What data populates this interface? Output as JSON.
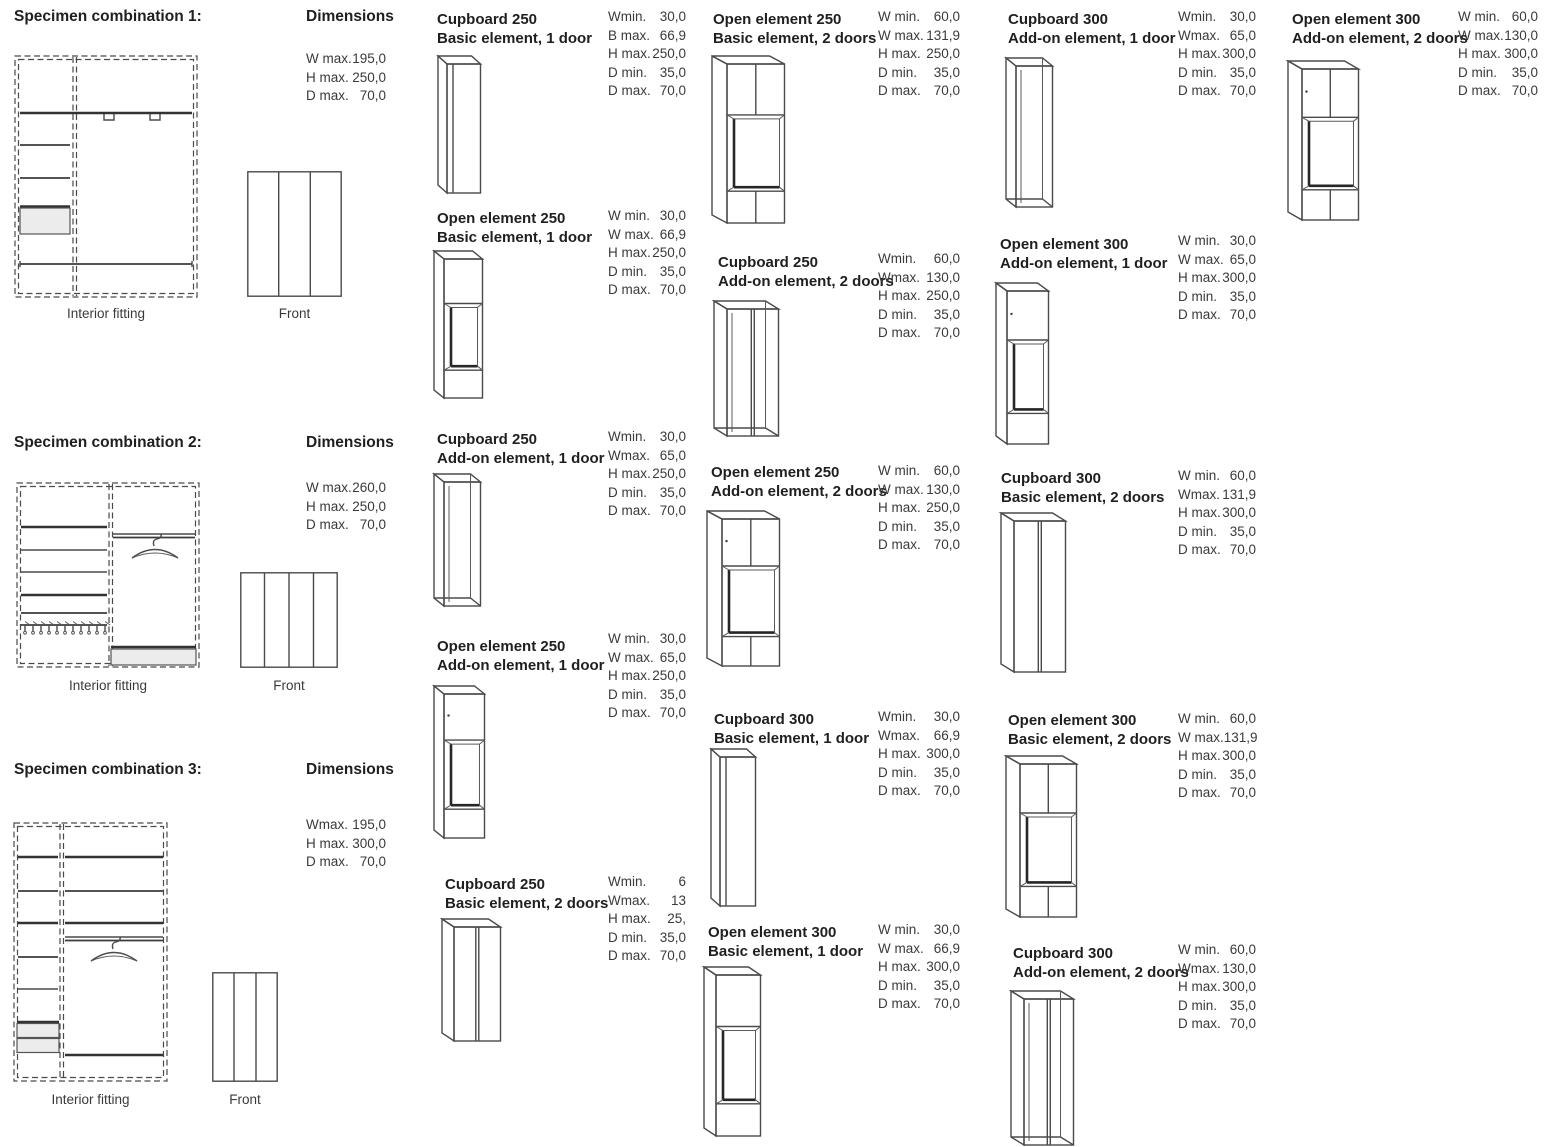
{
  "specimens": [
    {
      "heading": "Specimen combination 1:",
      "dims_heading": "Dimensions",
      "dims": [
        {
          "label": "W max.",
          "value": "195,0"
        },
        {
          "label": "H max.",
          "value": "250,0"
        },
        {
          "label": "D max.",
          "value": "70,0"
        }
      ],
      "interior_label": "Interior fitting",
      "front_label": "Front",
      "front_doors": 3
    },
    {
      "heading": "Specimen combination 2:",
      "dims_heading": "Dimensions",
      "dims": [
        {
          "label": "W max.",
          "value": "260,0"
        },
        {
          "label": "H max.",
          "value": "250,0"
        },
        {
          "label": "D max.",
          "value": "70,0"
        }
      ],
      "interior_label": "Interior fitting",
      "front_label": "Front",
      "front_doors": 4
    },
    {
      "heading": "Specimen combination 3:",
      "dims_heading": "Dimensions",
      "dims": [
        {
          "label": "Wmax.",
          "value": "195,0"
        },
        {
          "label": "H max.",
          "value": "300,0"
        },
        {
          "label": "D max.",
          "value": "70,0"
        }
      ],
      "interior_label": "Interior fitting",
      "front_label": "Front",
      "front_doors": 3
    }
  ],
  "cards": [
    {
      "line1": "Cupboard 250",
      "line2": "Basic element, 1 door",
      "drawing": "cupboard-1-door",
      "specs": [
        {
          "label": "Wmin.",
          "value": "30,0"
        },
        {
          "label": "B max.",
          "value": "66,9"
        },
        {
          "label": "H max.",
          "value": "250,0"
        },
        {
          "label": "D min.",
          "value": "35,0"
        },
        {
          "label": "D max.",
          "value": "70,0"
        }
      ]
    },
    {
      "line1": "Open element 250",
      "line2": "Basic element, 1 door",
      "drawing": "open-element-1-door",
      "specs": [
        {
          "label": "W min.",
          "value": "30,0"
        },
        {
          "label": "W max.",
          "value": "66,9"
        },
        {
          "label": "H max.",
          "value": "250,0"
        },
        {
          "label": "D min.",
          "value": "35,0"
        },
        {
          "label": "D max.",
          "value": "70,0"
        }
      ]
    },
    {
      "line1": "Cupboard 250",
      "line2": "Add-on element, 1 door",
      "drawing": "cupboard-1-door-addon",
      "specs": [
        {
          "label": "Wmin.",
          "value": "30,0"
        },
        {
          "label": "Wmax.",
          "value": "65,0"
        },
        {
          "label": "H max.",
          "value": "250,0"
        },
        {
          "label": "D min.",
          "value": "35,0"
        },
        {
          "label": "D max.",
          "value": "70,0"
        }
      ]
    },
    {
      "line1": "Open element 250",
      "line2": "Add-on element, 1 door",
      "drawing": "open-element-1-door-addon",
      "specs": [
        {
          "label": "W min.",
          "value": "30,0"
        },
        {
          "label": "W max.",
          "value": "65,0"
        },
        {
          "label": "H max.",
          "value": "250,0"
        },
        {
          "label": "D min.",
          "value": "35,0"
        },
        {
          "label": "D max.",
          "value": "70,0"
        }
      ]
    },
    {
      "line1": "Cupboard 250",
      "line2": "Basic element, 2 doors",
      "drawing": "cupboard-2-doors",
      "specs": [
        {
          "label": "Wmin.",
          "value": "6"
        },
        {
          "label": "Wmax.",
          "value": "13"
        },
        {
          "label": "H max.",
          "value": "25,"
        },
        {
          "label": "D min.",
          "value": "35,0"
        },
        {
          "label": "D max.",
          "value": "70,0"
        }
      ]
    },
    {
      "line1": "Open element 250",
      "line2": "Basic element, 2 doors",
      "drawing": "open-element-2-doors",
      "specs": [
        {
          "label": "W min.",
          "value": "60,0"
        },
        {
          "label": "W max.",
          "value": "131,9"
        },
        {
          "label": "H max.",
          "value": "250,0"
        },
        {
          "label": "D min.",
          "value": "35,0"
        },
        {
          "label": "D max.",
          "value": "70,0"
        }
      ]
    },
    {
      "line1": "Cupboard 250",
      "line2": "Add-on element, 2 doors",
      "drawing": "cupboard-2-doors-addon",
      "specs": [
        {
          "label": "Wmin.",
          "value": "60,0"
        },
        {
          "label": "Wmax.",
          "value": "130,0"
        },
        {
          "label": "H max.",
          "value": "250,0"
        },
        {
          "label": "D min.",
          "value": "35,0"
        },
        {
          "label": "D max.",
          "value": "70,0"
        }
      ]
    },
    {
      "line1": "Open element 250",
      "line2": "Add-on element, 2 doors",
      "drawing": "open-element-2-doors-addon",
      "specs": [
        {
          "label": "W min.",
          "value": "60,0"
        },
        {
          "label": "W max.",
          "value": "130,0"
        },
        {
          "label": "H max.",
          "value": "250,0"
        },
        {
          "label": "D min.",
          "value": "35,0"
        },
        {
          "label": "D max.",
          "value": "70,0"
        }
      ]
    },
    {
      "line1": "Cupboard 300",
      "line2": "Basic element, 1 door",
      "drawing": "cupboard-1-door",
      "specs": [
        {
          "label": "Wmin.",
          "value": "30,0"
        },
        {
          "label": "Wmax.",
          "value": "66,9"
        },
        {
          "label": "H max.",
          "value": "300,0"
        },
        {
          "label": "D min.",
          "value": "35,0"
        },
        {
          "label": "D max.",
          "value": "70,0"
        }
      ]
    },
    {
      "line1": "Open element 300",
      "line2": "Basic element, 1 door",
      "drawing": "open-element-1-door",
      "specs": [
        {
          "label": "W min.",
          "value": "30,0"
        },
        {
          "label": "W max.",
          "value": "66,9"
        },
        {
          "label": "H max.",
          "value": "300,0"
        },
        {
          "label": "D min.",
          "value": "35,0"
        },
        {
          "label": "D max.",
          "value": "70,0"
        }
      ]
    },
    {
      "line1": "Cupboard 300",
      "line2": "Add-on element, 1 door",
      "drawing": "cupboard-1-door-addon",
      "specs": [
        {
          "label": "Wmin.",
          "value": "30,0"
        },
        {
          "label": "Wmax.",
          "value": "65,0"
        },
        {
          "label": "H max.",
          "value": "300,0"
        },
        {
          "label": "D min.",
          "value": "35,0"
        },
        {
          "label": "D max.",
          "value": "70,0"
        }
      ]
    },
    {
      "line1": "Open element 300",
      "line2": "Add-on element, 1 door",
      "drawing": "open-element-1-door-addon",
      "specs": [
        {
          "label": "W min.",
          "value": "30,0"
        },
        {
          "label": "W max.",
          "value": "65,0"
        },
        {
          "label": "H max.",
          "value": "300,0"
        },
        {
          "label": "D min.",
          "value": "35,0"
        },
        {
          "label": "D max.",
          "value": "70,0"
        }
      ]
    },
    {
      "line1": "Cupboard 300",
      "line2": "Basic element, 2 doors",
      "drawing": "cupboard-2-doors",
      "specs": [
        {
          "label": "W min.",
          "value": "60,0"
        },
        {
          "label": "Wmax.",
          "value": "131,9"
        },
        {
          "label": "H max.",
          "value": "300,0"
        },
        {
          "label": "D min.",
          "value": "35,0"
        },
        {
          "label": "D max.",
          "value": "70,0"
        }
      ]
    },
    {
      "line1": "Open element 300",
      "line2": "Basic element, 2 doors",
      "drawing": "open-element-2-doors",
      "specs": [
        {
          "label": "W min.",
          "value": "60,0"
        },
        {
          "label": "W max.",
          "value": "131,9"
        },
        {
          "label": "H max.",
          "value": "300,0"
        },
        {
          "label": "D min.",
          "value": "35,0"
        },
        {
          "label": "D max.",
          "value": "70,0"
        }
      ]
    },
    {
      "line1": "Cupboard 300",
      "line2": "Add-on element, 2 doors",
      "drawing": "cupboard-2-doors-addon",
      "specs": [
        {
          "label": "W min.",
          "value": "60,0"
        },
        {
          "label": "Wmax.",
          "value": "130,0"
        },
        {
          "label": "H max.",
          "value": "300,0"
        },
        {
          "label": "D min.",
          "value": "35,0"
        },
        {
          "label": "D max.",
          "value": "70,0"
        }
      ]
    },
    {
      "line1": "Open element 300",
      "line2": "Add-on element, 2 doors",
      "drawing": "open-element-2-doors-addon",
      "specs": [
        {
          "label": "W min.",
          "value": "60,0"
        },
        {
          "label": "W max.",
          "value": "130,0"
        },
        {
          "label": "H max.",
          "value": "300,0"
        },
        {
          "label": "D min.",
          "value": "35,0"
        },
        {
          "label": "D max.",
          "value": "70,0"
        }
      ]
    }
  ],
  "colors": {
    "line": "#4a4a4a",
    "dark_line": "#262626",
    "drawer_fill": "#ececec",
    "text": "#3a3a3a",
    "heading": "#1f1f1f"
  }
}
